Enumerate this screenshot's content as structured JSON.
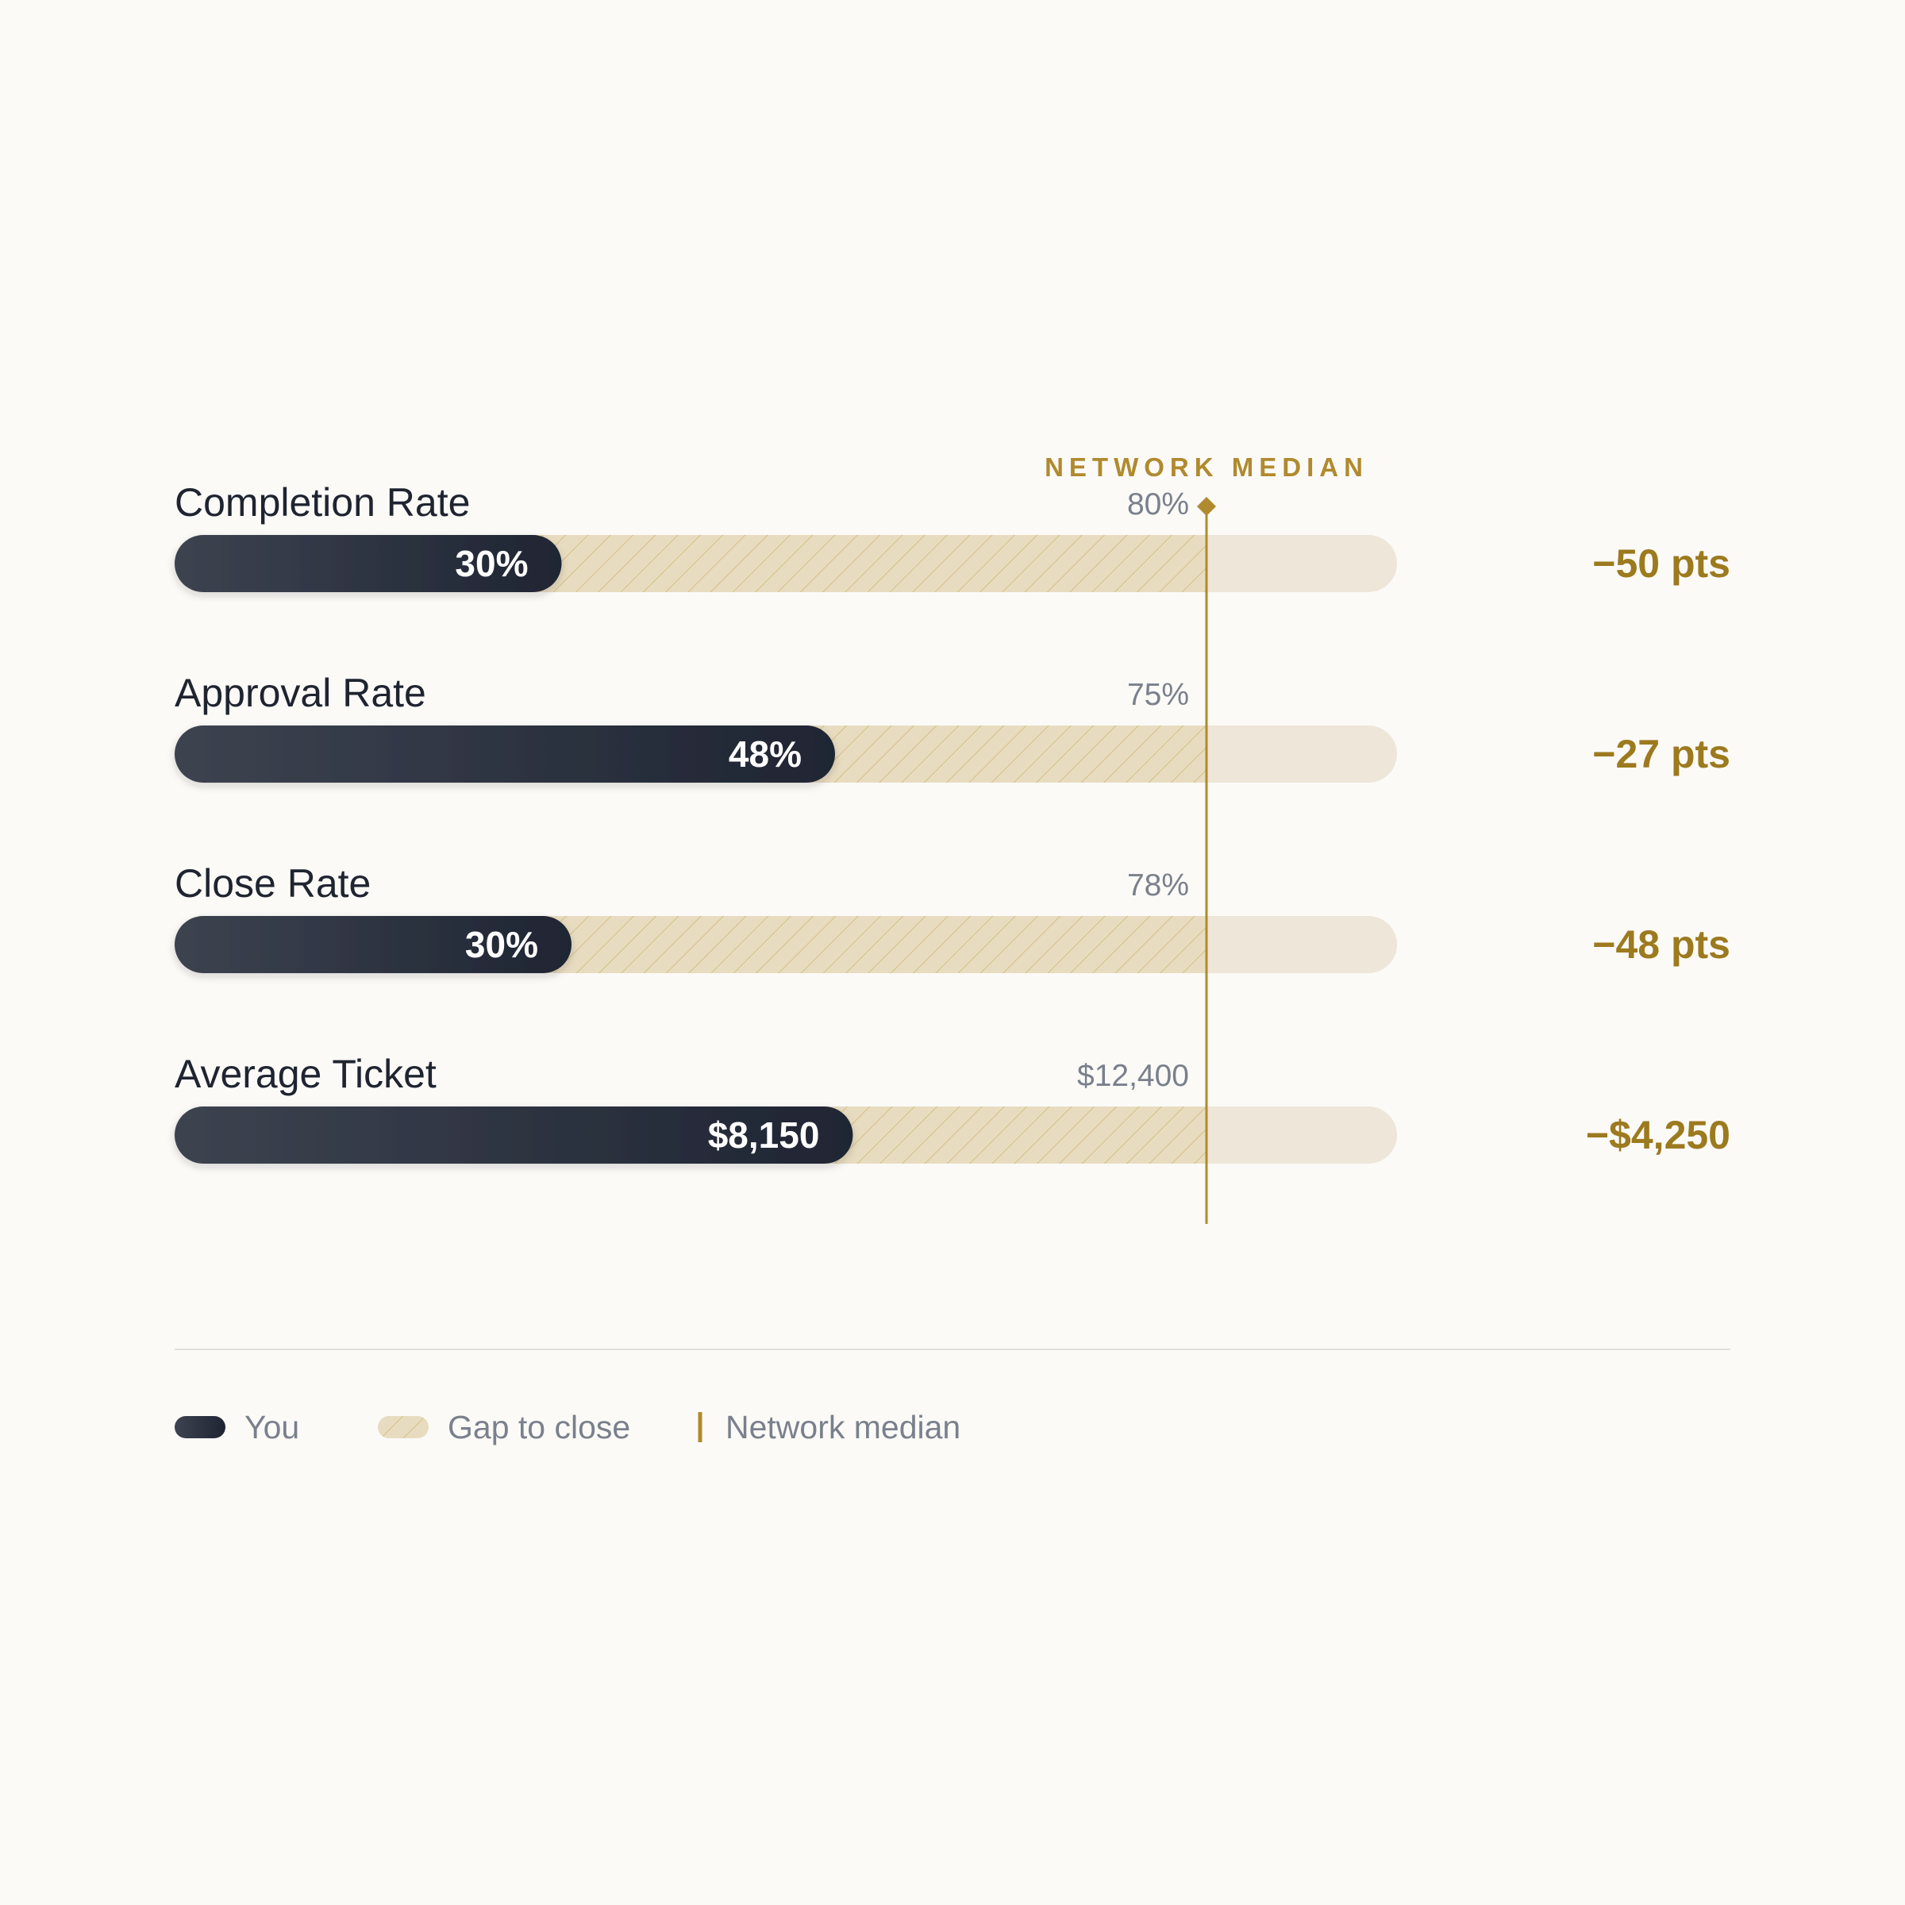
{
  "colors": {
    "background": "#fbfaf7",
    "you_start": "#3d4350",
    "you_end": "#1f2533",
    "track": "#ede6d9",
    "gap_fill": "#e8dcc0",
    "gap_hatch": "#d4bf85",
    "median": "#b08a2e",
    "difference": "#9c7a1e",
    "divider": "#e2e0dc"
  },
  "chart_data": {
    "type": "bar",
    "orientation": "horizontal",
    "median_title": "NETWORK MEDIAN",
    "axis_scale": "each bar normalized to its network median (median = 100%)",
    "rows": [
      {
        "label": "Completion Rate",
        "you": 30,
        "median": 80,
        "you_label": "30%",
        "median_label": "80%",
        "difference_label": "−50 pts"
      },
      {
        "label": "Approval Rate",
        "you": 48,
        "median": 75,
        "you_label": "48%",
        "median_label": "75%",
        "difference_label": "−27 pts"
      },
      {
        "label": "Close Rate",
        "you": 30,
        "median": 78,
        "you_label": "30%",
        "median_label": "78%",
        "difference_label": "−48 pts"
      },
      {
        "label": "Average Ticket",
        "you": 8150,
        "median": 12400,
        "you_label": "$8,150",
        "median_label": "$12,400",
        "difference_label": "−$4,250"
      }
    ],
    "legend": [
      {
        "key": "you",
        "label": "You"
      },
      {
        "key": "gap",
        "label": "Gap to close"
      },
      {
        "key": "median",
        "label": "Network median"
      }
    ]
  }
}
